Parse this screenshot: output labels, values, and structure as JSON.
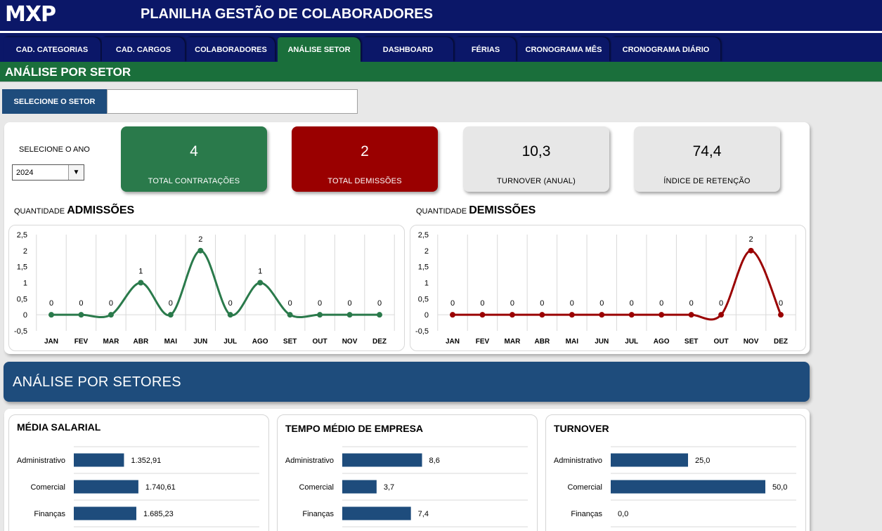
{
  "header": {
    "logo": "MXP",
    "title": "PLANILHA GESTÃO DE COLABORADORES"
  },
  "nav": {
    "tabs": [
      {
        "label": "CAD. CATEGORIAS",
        "active": false
      },
      {
        "label": "CAD. CARGOS",
        "active": false
      },
      {
        "label": "COLABORADORES",
        "active": false
      },
      {
        "label": "ANÁLISE SETOR",
        "active": true
      },
      {
        "label": "DASHBOARD",
        "active": false
      },
      {
        "label": "FÉRIAS",
        "active": false
      },
      {
        "label": "CRONOGRAMA MÊS",
        "active": false
      },
      {
        "label": "CRONOGRAMA DIÁRIO",
        "active": false
      }
    ]
  },
  "section": {
    "title": "ANÁLISE POR SETOR"
  },
  "filter": {
    "label": "SELECIONE O SETOR",
    "value": ""
  },
  "year": {
    "label": "SELECIONE O ANO",
    "value": "2024"
  },
  "kpis": [
    {
      "value": "4",
      "label": "TOTAL CONTRATAÇÕES",
      "color": "#2a7a4b",
      "text_color": "#ffffff"
    },
    {
      "value": "2",
      "label": "TOTAL DEMISSÕES",
      "color": "#9a0000",
      "text_color": "#ffffff"
    },
    {
      "value": "10,3",
      "label": "TURNOVER (ANUAL)",
      "color": "#e7e7e7",
      "text_color": "#000000"
    },
    {
      "value": "74,4",
      "label": "ÍNDICE DE RETENÇÃO",
      "color": "#e7e7e7",
      "text_color": "#000000"
    }
  ],
  "charts": {
    "admissoes": {
      "prefix": "QUANTIDADE",
      "title": "ADMISSÕES"
    },
    "demissoes": {
      "prefix": "QUANTIDADE",
      "title": "DEMISSÕES"
    }
  },
  "sectors_band": {
    "title": "ANÁLISE POR SETORES"
  },
  "bar_cards": {
    "salario": {
      "title": "MÉDIA SALARIAL"
    },
    "tempo": {
      "title": "TEMPO MÉDIO DE EMPRESA"
    },
    "turnover": {
      "title": "TURNOVER"
    }
  },
  "colors": {
    "navy": "#0b1768",
    "green": "#1a6f3b",
    "line_green": "#2a7a4b",
    "line_red": "#9a0000",
    "bar_blue": "#1e4c7c"
  },
  "chart_data": [
    {
      "type": "line",
      "x": [
        "JAN",
        "FEV",
        "MAR",
        "ABR",
        "MAI",
        "JUN",
        "JUL",
        "AGO",
        "SET",
        "OUT",
        "NOV",
        "DEZ"
      ],
      "series": [
        {
          "values": [
            0,
            0,
            0,
            1,
            0,
            2,
            0,
            1,
            0,
            0,
            0,
            0
          ]
        }
      ],
      "ylim": [
        -0.5,
        2.5
      ],
      "yticks": [
        "2,5",
        "2",
        "1,5",
        "1",
        "0,5",
        "0",
        "-0,5"
      ],
      "data_labels": true,
      "grid": true
    },
    {
      "type": "line",
      "x": [
        "JAN",
        "FEV",
        "MAR",
        "ABR",
        "MAI",
        "JUN",
        "JUL",
        "AGO",
        "SET",
        "OUT",
        "NOV",
        "DEZ"
      ],
      "series": [
        {
          "values": [
            0,
            0,
            0,
            0,
            0,
            0,
            0,
            0,
            0,
            0,
            2,
            0
          ]
        }
      ],
      "ylim": [
        -0.5,
        2.5
      ],
      "yticks": [
        "2,5",
        "2",
        "1,5",
        "1",
        "0,5",
        "0",
        "-0,5"
      ],
      "data_labels": true,
      "grid": true
    },
    {
      "type": "bar",
      "orientation": "horizontal",
      "categories": [
        "Administrativo",
        "Comercial",
        "Finanças"
      ],
      "values": [
        1352.91,
        1740.61,
        1685.23
      ],
      "labels": [
        "1.352,91",
        "1.740,61",
        "1.685,23"
      ],
      "xlim": [
        0,
        5000
      ]
    },
    {
      "type": "bar",
      "orientation": "horizontal",
      "categories": [
        "Administrativo",
        "Comercial",
        "Finanças"
      ],
      "values": [
        8.6,
        3.7,
        7.4
      ],
      "labels": [
        "8,6",
        "3,7",
        "7,4"
      ],
      "xlim": [
        0,
        20
      ]
    },
    {
      "type": "bar",
      "orientation": "horizontal",
      "categories": [
        "Administrativo",
        "Comercial",
        "Finanças"
      ],
      "values": [
        25.0,
        50.0,
        0.0
      ],
      "labels": [
        "25,0",
        "50,0",
        "0,0"
      ],
      "xlim": [
        0,
        60
      ]
    }
  ]
}
